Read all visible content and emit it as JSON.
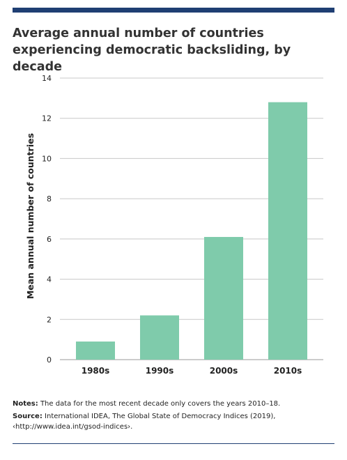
{
  "figure": {
    "title": "Average annual number of countries experiencing democratic backsliding, by decade",
    "notes_label": "Notes:",
    "notes_text": "The data for the most recent decade only covers the years 2010–18.",
    "source_label": "Source:",
    "source_text": "International IDEA, The Global State of Democracy Indices (2019), ‹http://www.idea.int/gsod-indices›."
  },
  "colors": {
    "bar": "#7fcbab",
    "grid": "#c8c8c8",
    "rule": "#1f3f73"
  },
  "chart_data": {
    "type": "bar",
    "title": "Average annual number of countries experiencing democratic backsliding, by decade",
    "xlabel": "",
    "ylabel": "Mean annual number of countries",
    "categories": [
      "1980s",
      "1990s",
      "2000s",
      "2010s"
    ],
    "values": [
      0.9,
      2.2,
      6.1,
      12.8
    ],
    "ylim": [
      0,
      14
    ],
    "yticks": [
      0,
      2,
      4,
      6,
      8,
      10,
      12,
      14
    ],
    "grid": true,
    "legend": "none"
  }
}
